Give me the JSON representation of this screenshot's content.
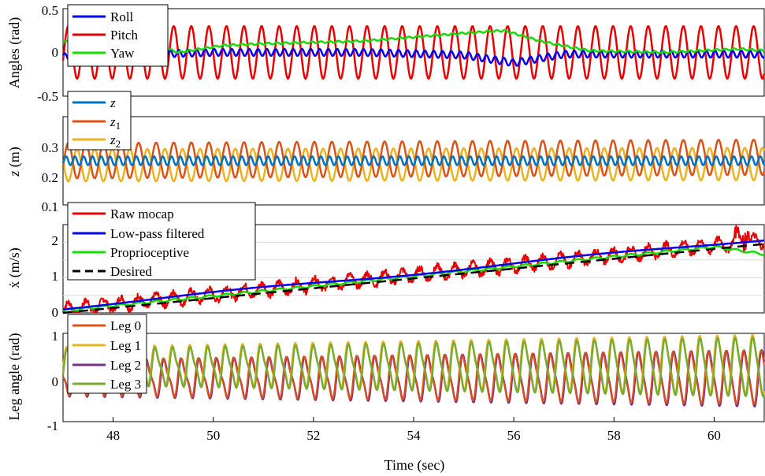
{
  "chart_data": [
    {
      "type": "line",
      "ylabel": "Angles (rad)",
      "ylim": [
        -0.5,
        0.5
      ],
      "yticks": [
        "0.5",
        "0",
        "-0.5"
      ],
      "xlim": [
        47,
        61
      ],
      "grid": false,
      "legend": "top-left",
      "series": [
        {
          "name": "Roll",
          "color": "#0000ee",
          "amplitude": 0.04,
          "mean": [
            [
              47,
              -0.05
            ],
            [
              50,
              0.0
            ],
            [
              53,
              0.0
            ],
            [
              55,
              -0.03
            ],
            [
              56,
              -0.12
            ],
            [
              57,
              -0.02
            ],
            [
              61,
              -0.02
            ]
          ]
        },
        {
          "name": "Pitch",
          "color": "#e80000",
          "amplitude": 0.3,
          "mean": [
            [
              47,
              0.0
            ],
            [
              61,
              0.0
            ]
          ]
        },
        {
          "name": "Yaw",
          "color": "#11dd00",
          "amplitude": 0.01,
          "mean": [
            [
              47,
              0.12
            ],
            [
              48.5,
              0.15
            ],
            [
              49.3,
              0.0
            ],
            [
              50.2,
              0.08
            ],
            [
              51,
              0.1
            ],
            [
              53,
              0.13
            ],
            [
              55,
              0.22
            ],
            [
              55.8,
              0.25
            ],
            [
              56.6,
              0.12
            ],
            [
              57.5,
              0.02
            ],
            [
              59,
              0.0
            ],
            [
              60.5,
              0.04
            ],
            [
              61,
              0.02
            ]
          ]
        }
      ]
    },
    {
      "type": "line",
      "ylabel": "z (m)",
      "ylim": [
        0.1,
        0.4
      ],
      "yticks": [
        "0.3",
        "0.2",
        "0.1"
      ],
      "xlim": [
        47,
        61
      ],
      "grid": false,
      "legend": "top-left",
      "series": [
        {
          "name": "z",
          "sub": "",
          "color": "#0072bd",
          "mean": 0.25,
          "amplitude": 0.015
        },
        {
          "name": "z",
          "sub": "1",
          "color": "#d95319",
          "mean": 0.25,
          "amplitude": 0.06
        },
        {
          "name": "z",
          "sub": "2",
          "color": "#edb120",
          "mean": 0.235,
          "amplitude": 0.055
        }
      ]
    },
    {
      "type": "line",
      "ylabel": "ẋ (m/s)",
      "ylim": [
        0,
        2.5
      ],
      "yticks": [
        "2",
        "1",
        "0"
      ],
      "xlim": [
        47,
        61
      ],
      "grid": true,
      "legend": "top-left",
      "series": [
        {
          "name": "Raw mocap",
          "color": "#e80000",
          "style": "solid"
        },
        {
          "name": "Low-pass filtered",
          "color": "#0000ee",
          "style": "solid"
        },
        {
          "name": "Proprioceptive",
          "color": "#11dd00",
          "style": "solid"
        },
        {
          "name": "Desired",
          "color": "#000000",
          "style": "dashed",
          "x": [
            47,
            61
          ],
          "y": [
            0.0,
            1.95
          ]
        }
      ]
    },
    {
      "type": "line",
      "ylabel": "Leg angle (rad)",
      "ylim": [
        -1,
        1
      ],
      "yticks": [
        "1",
        "0",
        "-1"
      ],
      "xlim": [
        47,
        61
      ],
      "xticks": [
        "48",
        "50",
        "52",
        "54",
        "56",
        "58",
        "60"
      ],
      "xlabel": "Time (sec)",
      "grid": false,
      "legend": "top-left",
      "series": [
        {
          "name": "Leg 0",
          "color": "#d95319",
          "phase": 0.0
        },
        {
          "name": "Leg 1",
          "color": "#edb120",
          "phase": 0.0
        },
        {
          "name": "Leg 2",
          "color": "#7e2f8e",
          "phase": 3.14159
        },
        {
          "name": "Leg 3",
          "color": "#77ac30",
          "phase": 0.0
        }
      ]
    }
  ]
}
